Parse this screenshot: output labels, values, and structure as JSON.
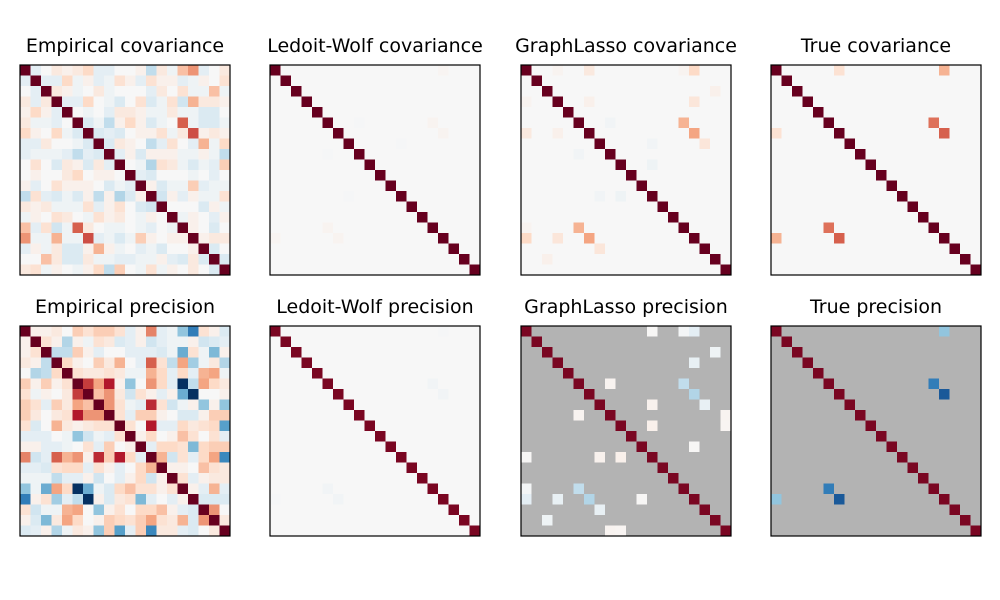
{
  "chart_data": [
    {
      "type": "heatmap",
      "title": "Empirical covariance",
      "colormap": "RdBu_r",
      "vrange": [
        -1,
        1
      ],
      "masked_zeros": false,
      "size": 20,
      "diag": 1,
      "upper": [
        [
          -0.1,
          0,
          0.1,
          0.05,
          0.1,
          0.2,
          -0.1,
          -0.1,
          0,
          0,
          0.05,
          -0.25,
          0.1,
          -0.05,
          0.3,
          0.45,
          -0.1,
          0,
          0.1
        ],
        [
          -0.1,
          -0.1,
          0.2,
          -0.05,
          0.05,
          -0.1,
          -0.05,
          0.15,
          0.05,
          -0.1,
          0.15,
          0.05,
          0.05,
          -0.1,
          -0.05,
          0.05,
          0,
          0.15
        ],
        [
          0.1,
          0.05,
          -0.05,
          0,
          0.1,
          -0.05,
          0,
          0,
          0,
          -0.1,
          0.1,
          0,
          0.15,
          -0.05,
          -0.05,
          0.3,
          -0.05
        ],
        [
          -0.1,
          -0.1,
          0.2,
          0,
          -0.05,
          -0.15,
          0,
          0.15,
          -0.15,
          -0.05,
          0.15,
          -0.2,
          0.35,
          0.1,
          0.1,
          0.05
        ],
        [
          0,
          -0.05,
          0,
          -0.1,
          0.1,
          0.1,
          0.05,
          -0.05,
          -0.05,
          0.1,
          -0.05,
          -0.05,
          -0.15,
          -0.15,
          0
        ],
        [
          -0.15,
          -0.05,
          -0.25,
          0.05,
          0.2,
          0.05,
          -0.15,
          -0.05,
          0,
          0.6,
          -0.05,
          -0.15,
          -0.15,
          -0.05
        ],
        [
          -0.15,
          -0.1,
          -0.15,
          0,
          0.05,
          0.05,
          0.15,
          -0.05,
          0.1,
          0.65,
          0.05,
          0.1,
          0.05
        ],
        [
          -0.15,
          0.1,
          0.05,
          0,
          -0.25,
          -0.1,
          0.15,
          0,
          -0.1,
          0.35,
          -0.05,
          0.2
        ],
        [
          -0.1,
          0.05,
          -0.15,
          0.05,
          0.05,
          0.05,
          -0.05,
          -0.05,
          0.05,
          -0.05,
          -0.25
        ],
        [
          0,
          -0.05,
          -0.3,
          0.15,
          0.1,
          -0.05,
          -0.15,
          -0.05,
          -0.1,
          0.25
        ],
        [
          -0.1,
          -0.15,
          0,
          0,
          0,
          -0.05,
          0,
          -0.1,
          0
        ],
        [
          0.05,
          -0.15,
          -0.05,
          -0.05,
          0.25,
          -0.1,
          -0.05,
          -0.05
        ],
        [
          -0.2,
          0.05,
          -0.1,
          0.05,
          -0.05,
          -0.05,
          0.15
        ],
        [
          0,
          0,
          0,
          -0.15,
          0.05,
          -0.05
        ],
        [
          -0.05,
          0.05,
          0,
          -0.1,
          0.05
        ],
        [
          0.05,
          0,
          -0.15,
          0
        ],
        [
          0.05,
          0.1,
          0.1
        ],
        [
          -0.15,
          0
        ],
        [
          -0.15
        ]
      ]
    },
    {
      "type": "heatmap",
      "title": "Ledoit-Wolf covariance",
      "colormap": "RdBu_r",
      "vrange": [
        -1,
        1
      ],
      "masked_zeros": false,
      "size": 20,
      "diag": 1,
      "entries": [
        [
          0,
          16,
          0.02
        ],
        [
          5,
          15,
          0.03
        ],
        [
          6,
          16,
          0.03
        ],
        [
          5,
          8,
          -0.01
        ],
        [
          7,
          12,
          -0.01
        ]
      ]
    },
    {
      "type": "heatmap",
      "title": "GraphLasso covariance",
      "colormap": "RdBu_r",
      "vrange": [
        -1,
        1
      ],
      "masked_zeros": false,
      "size": 20,
      "diag": 1,
      "entries": [
        [
          0,
          3,
          0.03
        ],
        [
          0,
          6,
          0.1
        ],
        [
          0,
          15,
          0.03
        ],
        [
          0,
          16,
          0.2
        ],
        [
          2,
          18,
          0.05
        ],
        [
          3,
          6,
          0.05
        ],
        [
          3,
          16,
          0.12
        ],
        [
          5,
          8,
          -0.03
        ],
        [
          5,
          15,
          0.35
        ],
        [
          6,
          16,
          0.4
        ],
        [
          7,
          12,
          -0.03
        ],
        [
          7,
          17,
          0.12
        ],
        [
          9,
          12,
          -0.05
        ]
      ]
    },
    {
      "type": "heatmap",
      "title": "True covariance",
      "colormap": "RdBu_r",
      "vrange": [
        -1,
        1
      ],
      "masked_zeros": false,
      "size": 20,
      "diag": 1,
      "entries": [
        [
          0,
          6,
          0.15
        ],
        [
          0,
          16,
          0.35
        ],
        [
          5,
          15,
          0.55
        ],
        [
          6,
          16,
          0.6
        ]
      ]
    },
    {
      "type": "heatmap",
      "title": "Empirical precision",
      "colormap": "RdBu_r",
      "vrange": [
        -1,
        1
      ],
      "masked_zeros": false,
      "size": 20,
      "diag": 1,
      "upper": [
        [
          0.05,
          0.05,
          0.1,
          0,
          0.25,
          0.15,
          0.25,
          0.25,
          0.15,
          -0.1,
          0.05,
          0.5,
          -0.1,
          -0.05,
          -0.4,
          -0.7,
          0.15,
          0.05,
          -0.15
        ],
        [
          0.15,
          0.05,
          -0.3,
          0.05,
          -0.05,
          0.15,
          0.1,
          -0.15,
          -0.1,
          0.05,
          -0.2,
          -0.1,
          -0.05,
          -0.05,
          0.05,
          -0.2,
          -0.15,
          -0.1
        ],
        [
          -0.25,
          -0.25,
          0.25,
          0.05,
          -0.1,
          0,
          0,
          -0.1,
          -0.1,
          -0.1,
          -0.15,
          -0.05,
          -0.5,
          0.15,
          -0.05,
          -0.45,
          0.05
        ],
        [
          0.2,
          0.05,
          0,
          0.25,
          0.1,
          0.35,
          0,
          -0.1,
          0.6,
          0.15,
          -0.25,
          0.4,
          -0.35,
          -0.05,
          0.1,
          -0.3
        ],
        [
          0.15,
          0.1,
          0.1,
          0.15,
          0.1,
          -0.05,
          -0.05,
          0.35,
          0.2,
          -0.1,
          0.2,
          -0.1,
          0.35,
          0.4,
          -0.05
        ],
        [
          0.7,
          0.4,
          0.8,
          0.05,
          -0.4,
          0,
          0.45,
          0.2,
          -0.1,
          -1,
          -0.25,
          0.4,
          0.2,
          0.1
        ],
        [
          0.3,
          0.45,
          0.1,
          -0.2,
          0.15,
          0.05,
          -0.1,
          0.05,
          -0.5,
          -1,
          0,
          0,
          0.05
        ],
        [
          0.45,
          0.15,
          -0.05,
          -0.1,
          0.75,
          0.15,
          -0.2,
          -0.05,
          0.05,
          -0.4,
          0.05,
          -0.4
        ],
        [
          0.15,
          -0.1,
          0.25,
          0.25,
          0.05,
          0,
          -0.15,
          -0.15,
          0.05,
          0.25,
          0.25
        ],
        [
          0.15,
          0,
          0.8,
          -0.1,
          -0.1,
          0.2,
          0.1,
          0.15,
          0.2,
          -0.55
        ],
        [
          0.05,
          0.2,
          0,
          0.05,
          0.3,
          0.15,
          0,
          0.15,
          -0.1
        ],
        [
          -0.1,
          0.2,
          0.2,
          0.15,
          -0.45,
          0.2,
          0.25,
          0.25
        ],
        [
          0.35,
          -0.2,
          0.15,
          -0.1,
          0.2,
          0.4,
          -0.65
        ],
        [
          0.05,
          0.05,
          0,
          0.3,
          0.15,
          0.1
        ],
        [
          0.15,
          -0.1,
          0.05,
          0.1,
          0.1
        ],
        [
          0.05,
          -0.1,
          0.35,
          -0.1
        ],
        [
          -0.15,
          -0.15,
          -0.15
        ],
        [
          0.45,
          0
        ],
        [
          0.1
        ]
      ]
    },
    {
      "type": "heatmap",
      "title": "Ledoit-Wolf precision",
      "colormap": "RdBu_r",
      "vrange": [
        -1,
        1
      ],
      "masked_zeros": false,
      "size": 20,
      "diag": 0.95,
      "entries": [
        [
          5,
          15,
          -0.03
        ],
        [
          6,
          16,
          -0.03
        ],
        [
          0,
          16,
          -0.01
        ]
      ]
    },
    {
      "type": "heatmap",
      "title": "GraphLasso precision",
      "colormap": "RdBu_r",
      "vrange": [
        -1,
        1
      ],
      "masked_zeros": true,
      "size": 20,
      "diag": 0.95,
      "entries": [
        [
          0,
          12,
          0.01
        ],
        [
          0,
          15,
          -0.02
        ],
        [
          0,
          16,
          -0.1
        ],
        [
          2,
          18,
          -0.05
        ],
        [
          3,
          16,
          -0.08
        ],
        [
          5,
          8,
          0.03
        ],
        [
          5,
          15,
          -0.25
        ],
        [
          6,
          16,
          -0.3
        ],
        [
          7,
          12,
          0.04
        ],
        [
          7,
          17,
          -0.08
        ],
        [
          8,
          19,
          0.03
        ],
        [
          9,
          12,
          0.05
        ],
        [
          9,
          19,
          0.02
        ],
        [
          11,
          16,
          0.01
        ]
      ]
    },
    {
      "type": "heatmap",
      "title": "True precision",
      "colormap": "RdBu_r",
      "vrange": [
        -1,
        1
      ],
      "masked_zeros": true,
      "size": 20,
      "diag": 0.95,
      "entries": [
        [
          0,
          16,
          -0.4
        ],
        [
          5,
          15,
          -0.7
        ],
        [
          6,
          16,
          -0.85
        ]
      ]
    }
  ]
}
